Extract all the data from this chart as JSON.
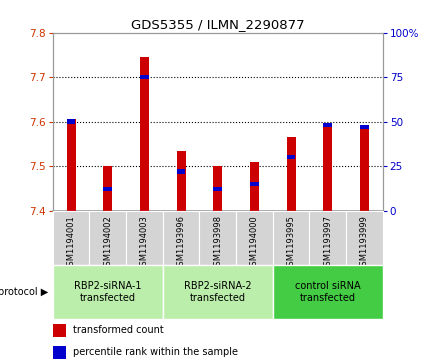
{
  "title": "GDS5355 / ILMN_2290877",
  "samples": [
    "GSM1194001",
    "GSM1194002",
    "GSM1194003",
    "GSM1193996",
    "GSM1193998",
    "GSM1194000",
    "GSM1193995",
    "GSM1193997",
    "GSM1193999"
  ],
  "red_values": [
    7.605,
    7.5,
    7.745,
    7.535,
    7.5,
    7.51,
    7.565,
    7.595,
    7.585
  ],
  "blue_values_pct": [
    50,
    12,
    75,
    22,
    12,
    15,
    30,
    48,
    47
  ],
  "ylim_left": [
    7.4,
    7.8
  ],
  "ylim_right": [
    0,
    100
  ],
  "yticks_left": [
    7.4,
    7.5,
    7.6,
    7.7,
    7.8
  ],
  "yticks_right": [
    0,
    25,
    50,
    75,
    100
  ],
  "bar_base": 7.4,
  "bar_width": 0.25,
  "red_color": "#cc0000",
  "blue_color": "#0000cc",
  "protocols": [
    {
      "label": "RBP2-siRNA-1\ntransfected",
      "indices": [
        0,
        1,
        2
      ],
      "color": "#bbeeaa"
    },
    {
      "label": "RBP2-siRNA-2\ntransfected",
      "indices": [
        3,
        4,
        5
      ],
      "color": "#bbeeaa"
    },
    {
      "label": "control siRNA\ntransfected",
      "indices": [
        6,
        7,
        8
      ],
      "color": "#44cc44"
    }
  ],
  "legend_red": "transformed count",
  "legend_blue": "percentile rank within the sample",
  "protocol_label": "protocol",
  "left_tick_color": "#cc3300",
  "right_tick_color": "#0000cc",
  "sample_box_color": "#d4d4d4",
  "grid_ticks": [
    7.5,
    7.6,
    7.7
  ]
}
